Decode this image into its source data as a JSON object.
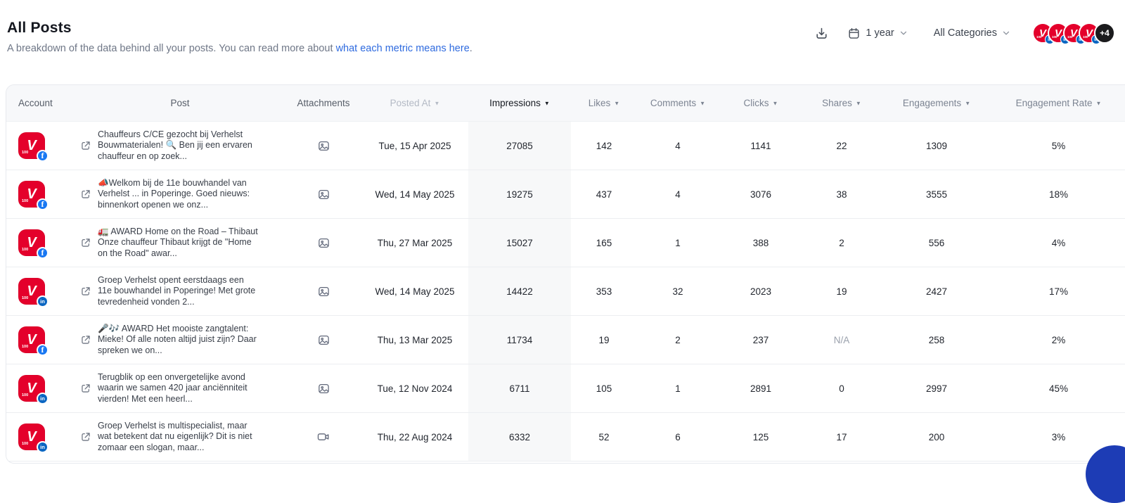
{
  "header": {
    "title": "All Posts",
    "subtitle_prefix": "A breakdown of the data behind all your posts. You can read more about ",
    "subtitle_link": "what each metric means here",
    "subtitle_suffix": ".",
    "date_range_label": "1 year",
    "category_filter_label": "All Categories",
    "avatar_networks": [
      "linkedin",
      "linkedin",
      "linkedin",
      "linkedin"
    ],
    "avatar_overflow_label": "+4"
  },
  "account_logo": {
    "letter": "V",
    "subtext": "100"
  },
  "network_badges": {
    "facebook": "f",
    "linkedin": "in"
  },
  "table": {
    "columns": [
      {
        "key": "account",
        "label": "Account",
        "sortable": false
      },
      {
        "key": "post",
        "label": "Post",
        "sortable": false
      },
      {
        "key": "attachments",
        "label": "Attachments",
        "sortable": false
      },
      {
        "key": "posted_at",
        "label": "Posted At",
        "sortable": true,
        "dimmed": true
      },
      {
        "key": "impressions",
        "label": "Impressions",
        "sortable": true,
        "sorted": true
      },
      {
        "key": "likes",
        "label": "Likes",
        "sortable": true
      },
      {
        "key": "comments",
        "label": "Comments",
        "sortable": true
      },
      {
        "key": "clicks",
        "label": "Clicks",
        "sortable": true
      },
      {
        "key": "shares",
        "label": "Shares",
        "sortable": true
      },
      {
        "key": "engagements",
        "label": "Engagements",
        "sortable": true
      },
      {
        "key": "engagement_rate",
        "label": "Engagement Rate",
        "sortable": true
      }
    ],
    "rows": [
      {
        "network": "facebook",
        "attachment": "image",
        "post_text": "Chauffeurs C/CE gezocht bij Verhelst Bouwmaterialen! 🔍 Ben jij een ervaren chauffeur en op zoek...",
        "posted_at": "Tue, 15 Apr 2025",
        "impressions": "27085",
        "likes": "142",
        "comments": "4",
        "clicks": "1141",
        "shares": "22",
        "engagements": "1309",
        "engagement_rate": "5%"
      },
      {
        "network": "facebook",
        "attachment": "image",
        "post_text": "📣Welkom bij de 11e bouwhandel van Verhelst ... in Poperinge. Goed nieuws: binnenkort openen we onz...",
        "posted_at": "Wed, 14 May 2025",
        "impressions": "19275",
        "likes": "437",
        "comments": "4",
        "clicks": "3076",
        "shares": "38",
        "engagements": "3555",
        "engagement_rate": "18%"
      },
      {
        "network": "facebook",
        "attachment": "image",
        "post_text": "🚛 AWARD Home on the Road – Thibaut Onze chauffeur Thibaut krijgt de \"Home on the Road\" awar...",
        "posted_at": "Thu, 27 Mar 2025",
        "impressions": "15027",
        "likes": "165",
        "comments": "1",
        "clicks": "388",
        "shares": "2",
        "engagements": "556",
        "engagement_rate": "4%"
      },
      {
        "network": "linkedin",
        "attachment": "image",
        "post_text": "Groep Verhelst opent eerstdaags een 11e bouwhandel in Poperinge! Met grote tevredenheid vonden 2...",
        "posted_at": "Wed, 14 May 2025",
        "impressions": "14422",
        "likes": "353",
        "comments": "32",
        "clicks": "2023",
        "shares": "19",
        "engagements": "2427",
        "engagement_rate": "17%"
      },
      {
        "network": "facebook",
        "attachment": "image",
        "post_text": "🎤🎶 AWARD Het mooiste zangtalent: Mieke! Of alle noten altijd juist zijn? Daar spreken we on...",
        "posted_at": "Thu, 13 Mar 2025",
        "impressions": "11734",
        "likes": "19",
        "comments": "2",
        "clicks": "237",
        "shares": "N/A",
        "engagements": "258",
        "engagement_rate": "2%"
      },
      {
        "network": "linkedin",
        "attachment": "image",
        "post_text": "Terugblik op een onvergetelijke avond waarin we samen 420 jaar anciënniteit vierden! Met een heerl...",
        "posted_at": "Tue, 12 Nov 2024",
        "impressions": "6711",
        "likes": "105",
        "comments": "1",
        "clicks": "2891",
        "shares": "0",
        "engagements": "2997",
        "engagement_rate": "45%"
      },
      {
        "network": "linkedin",
        "attachment": "video",
        "post_text": "Groep Verhelst is multispecialist, maar wat betekent dat nu eigenlijk? Dit is niet zomaar een slogan, maar...",
        "posted_at": "Thu, 22 Aug 2024",
        "impressions": "6332",
        "likes": "52",
        "comments": "6",
        "clicks": "125",
        "shares": "17",
        "engagements": "200",
        "engagement_rate": "3%"
      }
    ]
  }
}
